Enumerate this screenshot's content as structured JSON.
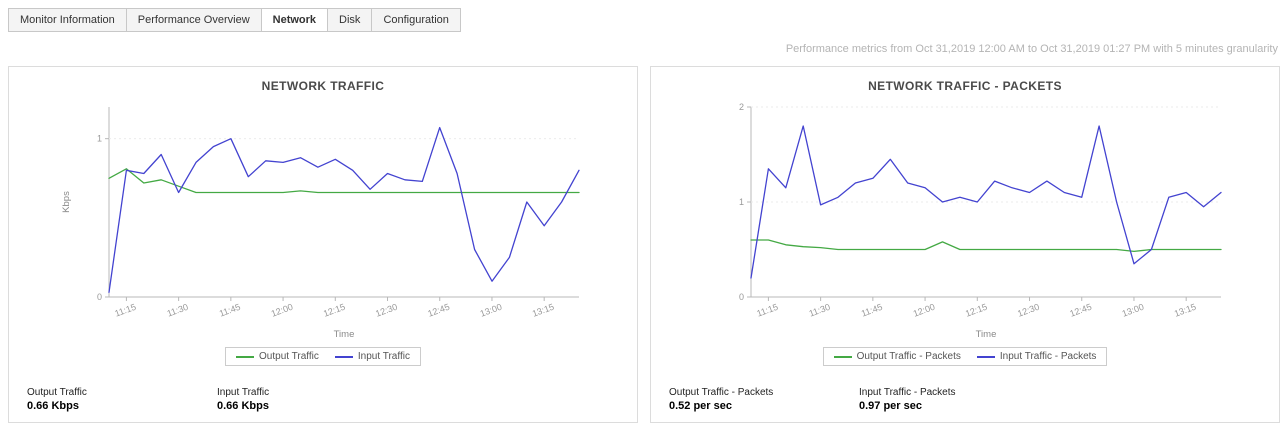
{
  "tabs": {
    "items": [
      {
        "label": "Monitor Information",
        "active": false
      },
      {
        "label": "Performance Overview",
        "active": false
      },
      {
        "label": "Network",
        "active": true
      },
      {
        "label": "Disk",
        "active": false
      },
      {
        "label": "Configuration",
        "active": false
      }
    ]
  },
  "header": {
    "metrics_note": "Performance metrics from Oct 31,2019 12:00 AM to Oct 31,2019 01:27 PM with 5 minutes granularity"
  },
  "colors": {
    "output_series": "#44a944",
    "input_series": "#4343d0",
    "axis": "#b8b8b8",
    "tick_text": "#999999"
  },
  "chart_data": [
    {
      "type": "line",
      "title": "NETWORK TRAFFIC",
      "xlabel": "Time",
      "ylabel": "Kbps",
      "ylim": [
        0,
        1.2
      ],
      "yticks": [
        0,
        1
      ],
      "x": [
        "11:10",
        "11:15",
        "11:20",
        "11:25",
        "11:30",
        "11:35",
        "11:40",
        "11:45",
        "11:50",
        "11:55",
        "12:00",
        "12:05",
        "12:10",
        "12:15",
        "12:20",
        "12:25",
        "12:30",
        "12:35",
        "12:40",
        "12:45",
        "12:50",
        "12:55",
        "13:00",
        "13:05",
        "13:10",
        "13:15",
        "13:20",
        "13:25"
      ],
      "xticks": [
        "11:15",
        "11:30",
        "11:45",
        "12:00",
        "12:15",
        "12:30",
        "12:45",
        "13:00",
        "13:15"
      ],
      "series": [
        {
          "name": "Output Traffic",
          "color": "#44a944",
          "values": [
            0.75,
            0.81,
            0.72,
            0.74,
            0.7,
            0.66,
            0.66,
            0.66,
            0.66,
            0.66,
            0.66,
            0.67,
            0.66,
            0.66,
            0.66,
            0.66,
            0.66,
            0.66,
            0.66,
            0.66,
            0.66,
            0.66,
            0.66,
            0.66,
            0.66,
            0.66,
            0.66,
            0.66
          ]
        },
        {
          "name": "Input Traffic",
          "color": "#4343d0",
          "values": [
            0.03,
            0.8,
            0.78,
            0.9,
            0.66,
            0.85,
            0.95,
            1.0,
            0.76,
            0.86,
            0.85,
            0.88,
            0.82,
            0.87,
            0.8,
            0.68,
            0.78,
            0.74,
            0.73,
            1.07,
            0.78,
            0.3,
            0.1,
            0.25,
            0.6,
            0.45,
            0.6,
            0.8
          ]
        }
      ],
      "stats": [
        {
          "label": "Output Traffic",
          "value": "0.66 Kbps"
        },
        {
          "label": "Input Traffic",
          "value": "0.66 Kbps"
        }
      ]
    },
    {
      "type": "line",
      "title": "NETWORK TRAFFIC - PACKETS",
      "xlabel": "Time",
      "ylabel": "",
      "ylim": [
        0,
        2
      ],
      "yticks": [
        0,
        1,
        2
      ],
      "x": [
        "11:10",
        "11:15",
        "11:20",
        "11:25",
        "11:30",
        "11:35",
        "11:40",
        "11:45",
        "11:50",
        "11:55",
        "12:00",
        "12:05",
        "12:10",
        "12:15",
        "12:20",
        "12:25",
        "12:30",
        "12:35",
        "12:40",
        "12:45",
        "12:50",
        "12:55",
        "13:00",
        "13:05",
        "13:10",
        "13:15",
        "13:20",
        "13:25"
      ],
      "xticks": [
        "11:15",
        "11:30",
        "11:45",
        "12:00",
        "12:15",
        "12:30",
        "12:45",
        "13:00",
        "13:15"
      ],
      "series": [
        {
          "name": "Output Traffic - Packets",
          "color": "#44a944",
          "values": [
            0.6,
            0.6,
            0.55,
            0.53,
            0.52,
            0.5,
            0.5,
            0.5,
            0.5,
            0.5,
            0.5,
            0.58,
            0.5,
            0.5,
            0.5,
            0.5,
            0.5,
            0.5,
            0.5,
            0.5,
            0.5,
            0.5,
            0.48,
            0.5,
            0.5,
            0.5,
            0.5,
            0.5
          ]
        },
        {
          "name": "Input Traffic - Packets",
          "color": "#4343d0",
          "values": [
            0.2,
            1.35,
            1.15,
            1.8,
            0.97,
            1.05,
            1.2,
            1.25,
            1.45,
            1.2,
            1.15,
            1.0,
            1.05,
            1.0,
            1.22,
            1.15,
            1.1,
            1.22,
            1.1,
            1.05,
            1.8,
            1.0,
            0.35,
            0.5,
            1.05,
            1.1,
            0.95,
            1.1
          ]
        }
      ],
      "stats": [
        {
          "label": "Output Traffic - Packets",
          "value": "0.52 per sec"
        },
        {
          "label": "Input Traffic - Packets",
          "value": "0.97 per sec"
        }
      ]
    }
  ]
}
